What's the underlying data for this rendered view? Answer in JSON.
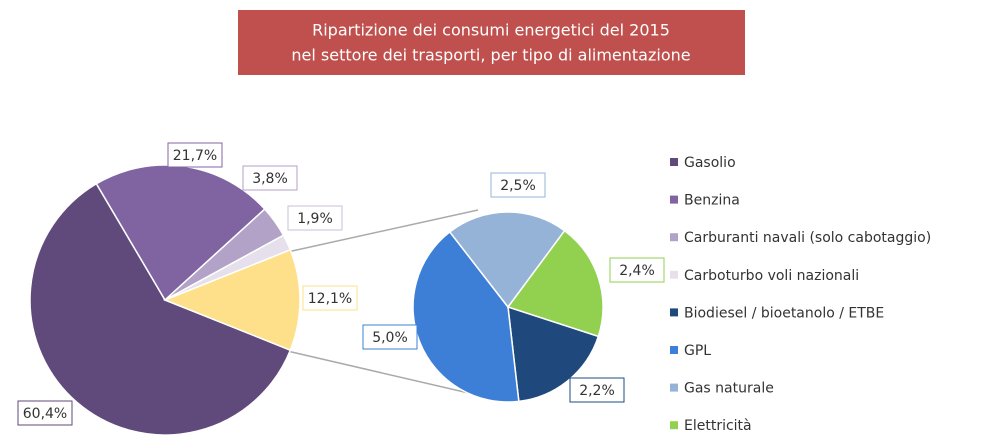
{
  "chart_data": [
    {
      "type": "pie",
      "title": [
        "Ripartizione dei consumi energetici del 2015",
        "nel settore dei trasporti, per tipo di alimentazione"
      ],
      "categories": [
        "Gasolio",
        "Benzina",
        "Carburanti navali (solo cabotaggio)",
        "Carboturbo voli nazionali",
        null
      ],
      "values": [
        60.4,
        21.7,
        3.8,
        1.9,
        12.1
      ],
      "value_labels": [
        "60,4%",
        "21,7%",
        "3,8%",
        "1,9%",
        "12,1%"
      ],
      "colors": [
        "#604a7b",
        "#8064a2",
        "#b3a2c7",
        "#e6e0ec",
        "#ffe08a"
      ]
    },
    {
      "type": "pie",
      "categories": [
        "Biodiesel / bioetanolo / ETBE",
        "GPL",
        "Gas naturale",
        "Elettricità"
      ],
      "values": [
        2.2,
        5.0,
        2.5,
        2.4
      ],
      "value_labels": [
        "2,2%",
        "5,0%",
        "2,5%",
        "2,4%"
      ],
      "colors": [
        "#1f497d",
        "#3d7fd6",
        "#95b3d7",
        "#92d050"
      ]
    }
  ]
}
